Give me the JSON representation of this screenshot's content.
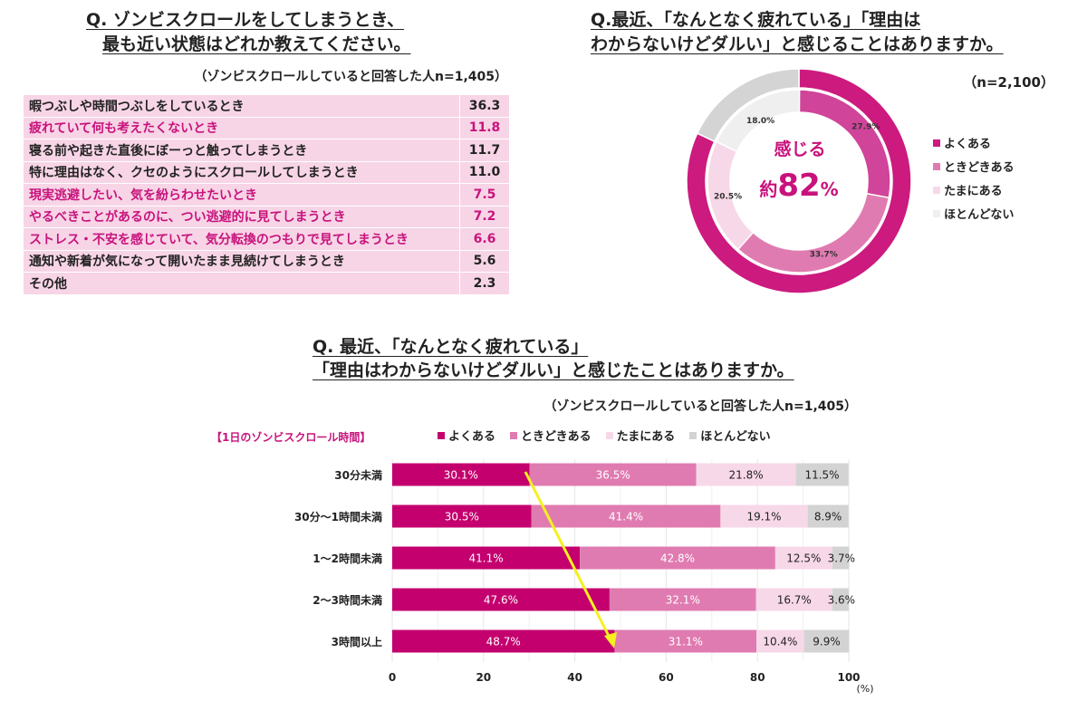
{
  "colors": {
    "often": "#c4006e",
    "sometimes": "#e07bb1",
    "rarely": "#f7d8e8",
    "never": "#d3d3d3",
    "accent": "#c8137c",
    "arrow": "#f5f020"
  },
  "left": {
    "title_line1": "Q. ゾンビスクロールをしてしまうとき、",
    "title_line2": "最も近い状態はどれか教えてください。",
    "note": "（ゾンビスクロールしていると回答した人n=1,405）"
  },
  "right": {
    "title_line1": "Q.最近、「なんとなく疲れている」「理由は",
    "title_line2": "わからないけどダルい」と感じることはありますか。",
    "note": "（n=2,100）",
    "center_label": "感じる",
    "center_prefix": "約",
    "center_value": "82",
    "center_unit": "%"
  },
  "bottom": {
    "title_line1": "Q. 最近、「なんとなく疲れている」",
    "title_line2": "「理由はわからないけどダルい」と感じたことはありますか。",
    "note": "（ゾンビスクロールしていると回答した人n=1,405）",
    "category_title": "【1日のゾンビスクロール時間】",
    "unit": "(%)"
  },
  "chart_data": [
    {
      "type": "table",
      "rows": [
        {
          "label": "暇つぶしや時間つぶしをしているとき",
          "value": "36.3",
          "highlight": false
        },
        {
          "label": "疲れていて何も考えたくないとき",
          "value": "11.8",
          "highlight": true
        },
        {
          "label": "寝る前や起きた直後にぼーっと触ってしまうとき",
          "value": "11.7",
          "highlight": false
        },
        {
          "label": "特に理由はなく、クセのようにスクロールしてしまうとき",
          "value": "11.0",
          "highlight": false
        },
        {
          "label": "現実逃避したい、気を紛らわせたいとき",
          "value": "7.5",
          "highlight": true
        },
        {
          "label": "やるべきことがあるのに、つい逃避的に見てしまうとき",
          "value": "7.2",
          "highlight": true
        },
        {
          "label": "ストレス・不安を感じていて、気分転換のつもりで見てしまうとき",
          "value": "6.6",
          "highlight": true
        },
        {
          "label": "通知や新着が気になって開いたまま見続けてしまうとき",
          "value": "5.6",
          "highlight": false
        },
        {
          "label": "その他",
          "value": "2.3",
          "highlight": false
        }
      ]
    },
    {
      "type": "pie",
      "style": "double donut",
      "legend": [
        "よくある",
        "ときどきある",
        "たまにある",
        "ほとんどない"
      ],
      "legend_position": "right",
      "inner": {
        "values": [
          27.9,
          33.7,
          20.5,
          18.0
        ],
        "labels": [
          "27.9%",
          "33.7%",
          "20.5%",
          "18.0%"
        ]
      },
      "outer": {
        "values": [
          82,
          18
        ]
      }
    },
    {
      "type": "bar",
      "orientation": "horizontal",
      "stacked": true,
      "categories": [
        "30分未満",
        "30分～1時間未満",
        "1～2時間未満",
        "2～3時間未満",
        "3時間以上"
      ],
      "series": [
        {
          "name": "よくある",
          "values": [
            30.1,
            30.5,
            41.1,
            47.6,
            48.7
          ]
        },
        {
          "name": "ときどきある",
          "values": [
            36.5,
            41.4,
            42.8,
            32.1,
            31.1
          ]
        },
        {
          "name": "たまにある",
          "values": [
            21.8,
            19.1,
            12.5,
            16.7,
            10.4
          ]
        },
        {
          "name": "ほとんどない",
          "values": [
            11.5,
            8.9,
            3.7,
            3.6,
            9.9
          ]
        }
      ],
      "xlim": [
        0,
        100
      ],
      "xticks": [
        "0",
        "20",
        "40",
        "60",
        "80",
        "100"
      ],
      "grid": true,
      "legend_position": "top",
      "annotation": "yellow arrow showing rising よくある share"
    }
  ]
}
